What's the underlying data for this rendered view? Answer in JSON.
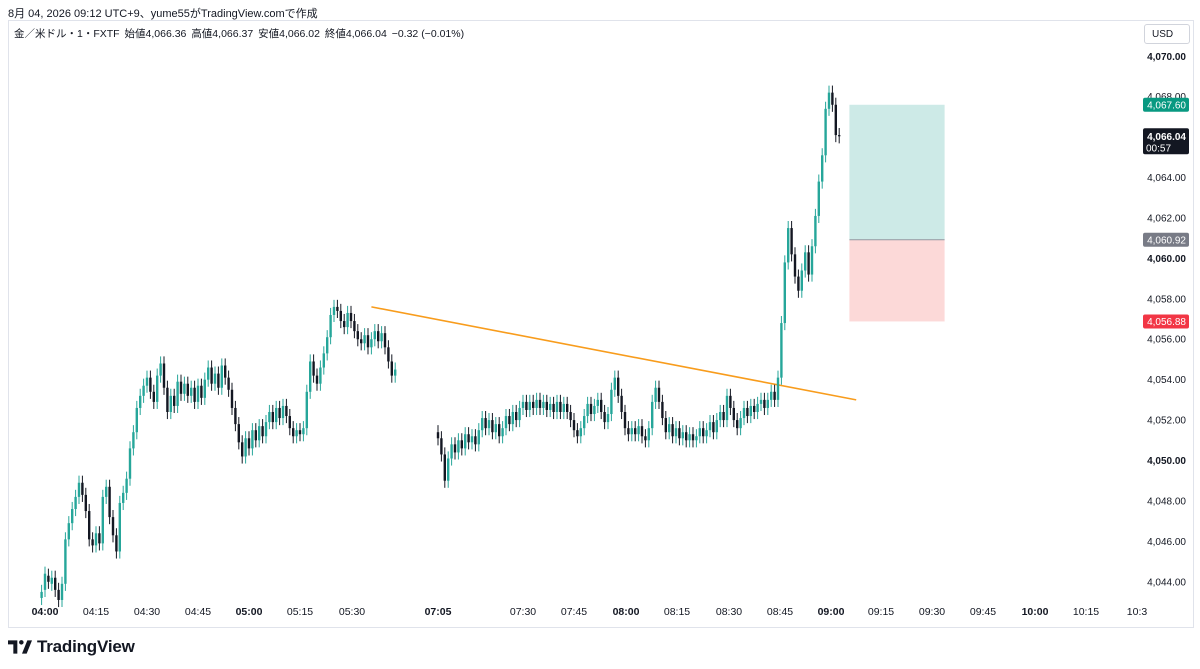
{
  "header": {
    "text": "8月 04, 2026 09:12 UTC+9、yume55がTradingView.comで作成"
  },
  "legend": {
    "symbol": "金／米ドル・1・FXTF",
    "open": "始値4,066.36",
    "high": "高値4,066.37",
    "low": "安値4,066.02",
    "close": "終値4,066.04",
    "change": "−0.32 (−0.01%)"
  },
  "currency_button": "USD",
  "footer": {
    "brand": "TradingView"
  },
  "colors": {
    "up": "#26a69a",
    "down": "#131722",
    "trendline": "#f89c1c",
    "target_zone": "#cdeae7",
    "stop_zone": "#fcd9d8",
    "target_tag": "#089981",
    "entry_tag": "#787b86",
    "stop_tag": "#f23645",
    "price_tag": "#131722"
  },
  "chart_data": {
    "type": "candlestick",
    "symbol": "金／米ドル",
    "timeframe": "1",
    "currency": "USD",
    "ylim": [
      4043.0,
      4071.2
    ],
    "y_ticks": [
      "4,044.00",
      "4,046.00",
      "4,048.00",
      "4,050.00",
      "4,052.00",
      "4,054.00",
      "4,056.00",
      "4,058.00",
      "4,060.00",
      "4,062.00",
      "4,064.00",
      "4,066.00",
      "4,068.00",
      "4,070.00"
    ],
    "y_tick_values": [
      4044,
      4046,
      4048,
      4050,
      4052,
      4054,
      4056,
      4058,
      4060,
      4062,
      4064,
      4066,
      4068,
      4070
    ],
    "y_bold_ticks": [
      "4,050.00",
      "4,060.00",
      "4,070.00"
    ],
    "x_ticks": [
      {
        "label": "04:00",
        "bold": true
      },
      {
        "label": "04:15",
        "bold": false
      },
      {
        "label": "04:30",
        "bold": false
      },
      {
        "label": "04:45",
        "bold": false
      },
      {
        "label": "05:00",
        "bold": true
      },
      {
        "label": "05:15",
        "bold": false
      },
      {
        "label": "05:30",
        "bold": false
      },
      {
        "label": "07:05",
        "bold": true
      },
      {
        "label": "07:30",
        "bold": false
      },
      {
        "label": "07:45",
        "bold": false
      },
      {
        "label": "08:00",
        "bold": true
      },
      {
        "label": "08:15",
        "bold": false
      },
      {
        "label": "08:30",
        "bold": false
      },
      {
        "label": "08:45",
        "bold": false
      },
      {
        "label": "09:00",
        "bold": true
      },
      {
        "label": "09:15",
        "bold": false
      },
      {
        "label": "09:30",
        "bold": false
      },
      {
        "label": "09:45",
        "bold": false
      },
      {
        "label": "10:00",
        "bold": true
      },
      {
        "label": "10:15",
        "bold": false
      },
      {
        "label": "10:3",
        "bold": false
      }
    ],
    "segments": [
      {
        "start": "03:59",
        "points": [
          [
            4043.2,
            4043.5
          ],
          [
            4043.6,
            4044.4
          ],
          [
            4044.3,
            4044.0
          ],
          [
            4043.9,
            4044.2
          ],
          [
            4044.2,
            4043.6
          ],
          [
            4043.6,
            4043.1
          ],
          [
            4043.1,
            4043.9
          ],
          [
            4043.9,
            4046.1
          ],
          [
            4046.1,
            4046.9
          ],
          [
            4046.9,
            4047.6
          ],
          [
            4047.6,
            4048.2
          ],
          [
            4048.2,
            4048.9
          ],
          [
            4048.9,
            4048.3
          ],
          [
            4048.3,
            4047.5
          ],
          [
            4047.5,
            4046.1
          ],
          [
            4046.1,
            4045.8
          ],
          [
            4045.8,
            4046.4
          ],
          [
            4046.4,
            4045.9
          ],
          [
            4045.9,
            4048.2
          ],
          [
            4048.2,
            4048.7
          ],
          [
            4048.7,
            4047.2
          ],
          [
            4047.2,
            4046.3
          ],
          [
            4046.3,
            4045.5
          ],
          [
            4045.5,
            4047.9
          ],
          [
            4047.9,
            4048.4
          ],
          [
            4048.4,
            4049.1
          ],
          [
            4049.1,
            4050.6
          ],
          [
            4050.6,
            4051.4
          ],
          [
            4051.4,
            4052.6
          ],
          [
            4052.6,
            4053.2
          ],
          [
            4053.2,
            4053.7
          ],
          [
            4053.7,
            4054.1
          ],
          [
            4054.1,
            4053.4
          ],
          [
            4053.4,
            4052.9
          ],
          [
            4052.9,
            4054.2
          ],
          [
            4054.2,
            4054.8
          ],
          [
            4054.8,
            4053.6
          ],
          [
            4053.6,
            4052.4
          ],
          [
            4052.4,
            4053.2
          ],
          [
            4053.2,
            4052.7
          ],
          [
            4052.7,
            4053.9
          ],
          [
            4053.9,
            4053.3
          ],
          [
            4053.3,
            4053.8
          ],
          [
            4053.8,
            4053.2
          ],
          [
            4053.2,
            4053.6
          ],
          [
            4053.6,
            4052.9
          ],
          [
            4052.9,
            4053.7
          ],
          [
            4053.7,
            4053.1
          ],
          [
            4053.1,
            4054.0
          ],
          [
            4054.0,
            4054.6
          ],
          [
            4054.6,
            4053.8
          ],
          [
            4053.8,
            4054.3
          ],
          [
            4054.3,
            4053.6
          ],
          [
            4053.6,
            4054.7
          ],
          [
            4054.7,
            4054.1
          ],
          [
            4054.1,
            4053.5
          ],
          [
            4053.5,
            4052.6
          ],
          [
            4052.6,
            4051.8
          ],
          [
            4051.8,
            4050.9
          ],
          [
            4050.9,
            4050.2
          ],
          [
            4050.2,
            4051.1
          ],
          [
            4051.1,
            4050.6
          ],
          [
            4050.6,
            4051.5
          ],
          [
            4051.5,
            4051.0
          ],
          [
            4051.0,
            4051.7
          ],
          [
            4051.7,
            4051.2
          ],
          [
            4051.2,
            4051.9
          ],
          [
            4051.9,
            4052.4
          ],
          [
            4052.4,
            4051.9
          ],
          [
            4051.9,
            4052.6
          ],
          [
            4052.6,
            4052.1
          ],
          [
            4052.1,
            4052.7
          ],
          [
            4052.7,
            4052.2
          ],
          [
            4052.2,
            4051.6
          ],
          [
            4051.6,
            4051.2
          ],
          [
            4051.2,
            4051.5
          ],
          [
            4051.5,
            4051.3
          ],
          [
            4051.3,
            4051.6
          ],
          [
            4051.6,
            4053.4
          ],
          [
            4053.4,
            4054.9
          ],
          [
            4054.9,
            4054.2
          ],
          [
            4054.2,
            4053.8
          ],
          [
            4053.8,
            4054.6
          ],
          [
            4054.6,
            4055.3
          ],
          [
            4055.3,
            4056.1
          ],
          [
            4056.1,
            4057.2
          ],
          [
            4057.2,
            4057.6
          ],
          [
            4057.6,
            4057.4
          ],
          [
            4057.4,
            4056.9
          ],
          [
            4056.9,
            4056.6
          ],
          [
            4056.6,
            4057.3
          ],
          [
            4057.3,
            4056.9
          ],
          [
            4056.9,
            4056.4
          ],
          [
            4056.4,
            4056.0
          ],
          [
            4056.0,
            4055.8
          ],
          [
            4055.8,
            4056.2
          ],
          [
            4056.2,
            4055.6
          ],
          [
            4055.6,
            4056.0
          ],
          [
            4056.0,
            4056.4
          ],
          [
            4056.4,
            4055.9
          ],
          [
            4055.9,
            4056.3
          ],
          [
            4056.3,
            4055.6
          ],
          [
            4055.6,
            4054.9
          ],
          [
            4054.9,
            4054.2
          ],
          [
            4054.2,
            4054.5
          ]
        ]
      },
      {
        "start": "07:05",
        "points": [
          [
            4051.4,
            4051.1
          ],
          [
            4051.1,
            4050.3
          ],
          [
            4050.3,
            4049.0
          ],
          [
            4049.0,
            4050.1
          ],
          [
            4050.1,
            4050.8
          ],
          [
            4050.8,
            4050.4
          ],
          [
            4050.4,
            4051.0
          ],
          [
            4051.0,
            4050.6
          ],
          [
            4050.6,
            4051.3
          ],
          [
            4051.3,
            4050.9
          ],
          [
            4050.9,
            4051.2
          ],
          [
            4051.2,
            4050.8
          ],
          [
            4050.8,
            4051.5
          ],
          [
            4051.5,
            4052.1
          ],
          [
            4052.1,
            4051.6
          ],
          [
            4051.6,
            4052.0
          ],
          [
            4052.0,
            4051.4
          ],
          [
            4051.4,
            4051.8
          ],
          [
            4051.8,
            4051.2
          ],
          [
            4051.2,
            4051.6
          ],
          [
            4051.6,
            4052.2
          ],
          [
            4052.2,
            4051.8
          ],
          [
            4051.8,
            4052.4
          ],
          [
            4052.4,
            4052.0
          ],
          [
            4052.0,
            4052.6
          ],
          [
            4052.6,
            4052.9
          ],
          [
            4052.9,
            4052.5
          ],
          [
            4052.5,
            4052.9
          ],
          [
            4052.9,
            4052.6
          ],
          [
            4052.6,
            4053.0
          ],
          [
            4053.0,
            4052.6
          ],
          [
            4052.6,
            4052.9
          ],
          [
            4052.9,
            4052.5
          ],
          [
            4052.5,
            4052.8
          ],
          [
            4052.8,
            4052.4
          ],
          [
            4052.4,
            4052.9
          ],
          [
            4052.9,
            4052.4
          ],
          [
            4052.4,
            4052.8
          ],
          [
            4052.8,
            4052.4
          ],
          [
            4052.4,
            4052.0
          ],
          [
            4052.0,
            4051.5
          ],
          [
            4051.5,
            4051.2
          ],
          [
            4051.2,
            4051.6
          ],
          [
            4051.6,
            4052.2
          ],
          [
            4052.2,
            4052.8
          ],
          [
            4052.8,
            4052.3
          ],
          [
            4052.3,
            4052.7
          ],
          [
            4052.7,
            4053.0
          ],
          [
            4053.0,
            4052.4
          ],
          [
            4052.4,
            4051.9
          ],
          [
            4051.9,
            4052.3
          ],
          [
            4052.3,
            4053.5
          ],
          [
            4053.5,
            4054.1
          ],
          [
            4054.1,
            4053.2
          ],
          [
            4053.2,
            4052.4
          ],
          [
            4052.4,
            4051.6
          ],
          [
            4051.6,
            4051.3
          ],
          [
            4051.3,
            4051.6
          ],
          [
            4051.6,
            4051.3
          ],
          [
            4051.3,
            4051.7
          ],
          [
            4051.7,
            4051.2
          ],
          [
            4051.2,
            4051.0
          ],
          [
            4051.0,
            4051.6
          ],
          [
            4051.6,
            4052.9
          ],
          [
            4052.9,
            4053.6
          ],
          [
            4053.6,
            4052.9
          ],
          [
            4052.9,
            4052.1
          ],
          [
            4052.1,
            4051.4
          ],
          [
            4051.4,
            4051.8
          ],
          [
            4051.8,
            4051.2
          ],
          [
            4051.2,
            4051.6
          ],
          [
            4051.6,
            4051.1
          ],
          [
            4051.1,
            4051.4
          ],
          [
            4051.4,
            4051.0
          ],
          [
            4051.0,
            4051.3
          ],
          [
            4051.3,
            4051.0
          ],
          [
            4051.0,
            4051.2
          ],
          [
            4051.2,
            4051.6
          ],
          [
            4051.6,
            4051.2
          ],
          [
            4051.2,
            4051.5
          ],
          [
            4051.5,
            4051.9
          ],
          [
            4051.9,
            4051.4
          ],
          [
            4051.4,
            4052.0
          ],
          [
            4052.0,
            4052.4
          ],
          [
            4052.4,
            4052.0
          ],
          [
            4052.0,
            4053.2
          ],
          [
            4053.2,
            4052.6
          ],
          [
            4052.6,
            4052.0
          ],
          [
            4052.0,
            4051.6
          ],
          [
            4051.6,
            4052.1
          ],
          [
            4052.1,
            4052.6
          ],
          [
            4052.6,
            4052.2
          ],
          [
            4052.2,
            4052.7
          ],
          [
            4052.7,
            4052.4
          ],
          [
            4052.4,
            4052.8
          ],
          [
            4052.8,
            4053.0
          ],
          [
            4053.0,
            4052.6
          ],
          [
            4052.6,
            4053.0
          ],
          [
            4053.0,
            4053.4
          ],
          [
            4053.4,
            4053.0
          ],
          [
            4053.0,
            4054.1
          ],
          [
            4054.1,
            4056.8
          ],
          [
            4056.8,
            4059.8
          ],
          [
            4059.8,
            4061.5
          ],
          [
            4061.5,
            4060.2
          ],
          [
            4060.2,
            4059.1
          ],
          [
            4059.1,
            4058.4
          ],
          [
            4058.4,
            4059.4
          ],
          [
            4059.4,
            4060.3
          ],
          [
            4060.3,
            4059.2
          ],
          [
            4059.2,
            4060.6
          ],
          [
            4060.6,
            4062.1
          ],
          [
            4062.1,
            4063.8
          ],
          [
            4063.8,
            4065.1
          ],
          [
            4065.1,
            4067.4
          ],
          [
            4067.4,
            4068.2
          ],
          [
            4068.2,
            4067.6
          ],
          [
            4067.6,
            4066.1
          ],
          [
            4066.1,
            4066.04
          ]
        ]
      }
    ],
    "trendline": {
      "from": {
        "time": "05:36",
        "price": 4057.6
      },
      "to": {
        "time": "09:08",
        "price": 4053.0
      }
    },
    "position": {
      "entry": 4060.92,
      "target": 4067.6,
      "stop": 4056.88,
      "start_time": "09:06",
      "end_time": "09:34"
    },
    "last_price": "4,066.04",
    "countdown": "00:57",
    "price_tags": {
      "target": "4,067.60",
      "entry": "4,060.92",
      "stop": "4,056.88"
    }
  }
}
